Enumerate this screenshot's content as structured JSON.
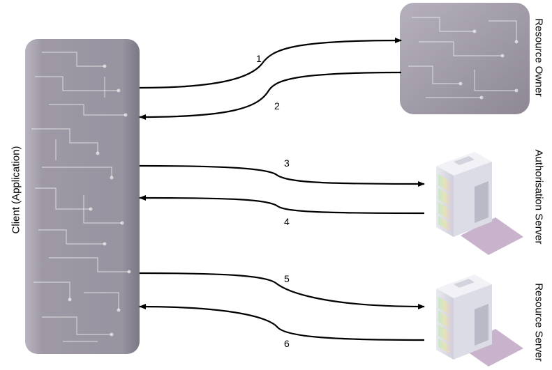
{
  "labels": {
    "client": "Client (Application)",
    "resource_owner": "Resource Owner",
    "authorisation_server": "Authorisation Server",
    "resource_server": "Resource Server"
  },
  "steps": [
    "1",
    "2",
    "3",
    "4",
    "5",
    "6"
  ],
  "colors": {
    "board_fill": "#9a95a0",
    "board_edge": "#b8b3bf",
    "trace": "#ffffff",
    "arrow": "#000000",
    "server_shadow": "#c9b3cc"
  },
  "icons": {
    "client": "circuit-board-icon",
    "resource_owner": "circuit-board-icon",
    "authorisation_server": "server-icon",
    "resource_server": "server-icon"
  }
}
